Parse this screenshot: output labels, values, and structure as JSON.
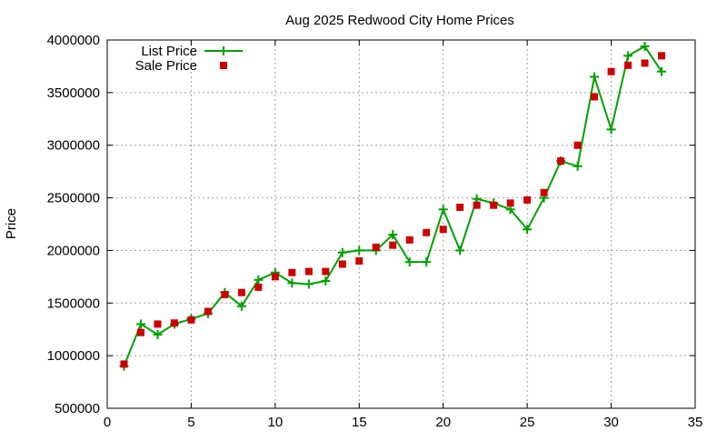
{
  "chart_data": {
    "type": "line",
    "title": "Aug 2025 Redwood City Home Prices",
    "xlabel": "",
    "ylabel": "Price",
    "xlim": [
      0,
      35
    ],
    "ylim": [
      500000,
      4000000
    ],
    "xticks": [
      0,
      5,
      10,
      15,
      20,
      25,
      30,
      35
    ],
    "yticks": [
      500000,
      1000000,
      1500000,
      2000000,
      2500000,
      3000000,
      3500000,
      4000000
    ],
    "xtick_labels": [
      "0",
      "5",
      "10",
      "15",
      "20",
      "25",
      "30",
      "35"
    ],
    "ytick_labels": [
      "500000",
      "1000000",
      "1500000",
      "2000000",
      "2500000",
      "3000000",
      "3500000",
      "4000000"
    ],
    "grid": true,
    "legend_position": "top-left",
    "series": [
      {
        "name": "List Price",
        "style": "line-with-plus-markers",
        "color": "#00a000",
        "x": [
          1,
          2,
          3,
          4,
          5,
          6,
          7,
          8,
          9,
          10,
          11,
          12,
          13,
          14,
          15,
          16,
          17,
          18,
          19,
          20,
          21,
          22,
          23,
          24,
          25,
          26,
          27,
          28,
          29,
          30,
          31,
          32,
          33
        ],
        "values": [
          900000,
          1300000,
          1200000,
          1300000,
          1350000,
          1400000,
          1600000,
          1470000,
          1720000,
          1790000,
          1690000,
          1680000,
          1710000,
          1980000,
          2000000,
          2000000,
          2150000,
          1890000,
          1890000,
          2390000,
          2000000,
          2490000,
          2450000,
          2390000,
          2200000,
          2500000,
          2850000,
          2800000,
          3650000,
          3150000,
          3850000,
          3940000,
          3700000
        ]
      },
      {
        "name": "Sale Price",
        "style": "square-markers",
        "color": "#cc0000",
        "x": [
          1,
          2,
          3,
          4,
          5,
          6,
          7,
          8,
          9,
          10,
          11,
          12,
          13,
          14,
          15,
          16,
          17,
          18,
          19,
          20,
          21,
          22,
          23,
          24,
          25,
          26,
          27,
          28,
          29,
          30,
          31,
          32,
          33
        ],
        "values": [
          920000,
          1220000,
          1300000,
          1310000,
          1340000,
          1420000,
          1580000,
          1600000,
          1650000,
          1750000,
          1790000,
          1800000,
          1800000,
          1870000,
          1900000,
          2030000,
          2050000,
          2100000,
          2170000,
          2200000,
          2410000,
          2430000,
          2430000,
          2450000,
          2480000,
          2550000,
          2850000,
          3000000,
          3460000,
          3700000,
          3760000,
          3780000,
          3850000
        ]
      }
    ]
  }
}
